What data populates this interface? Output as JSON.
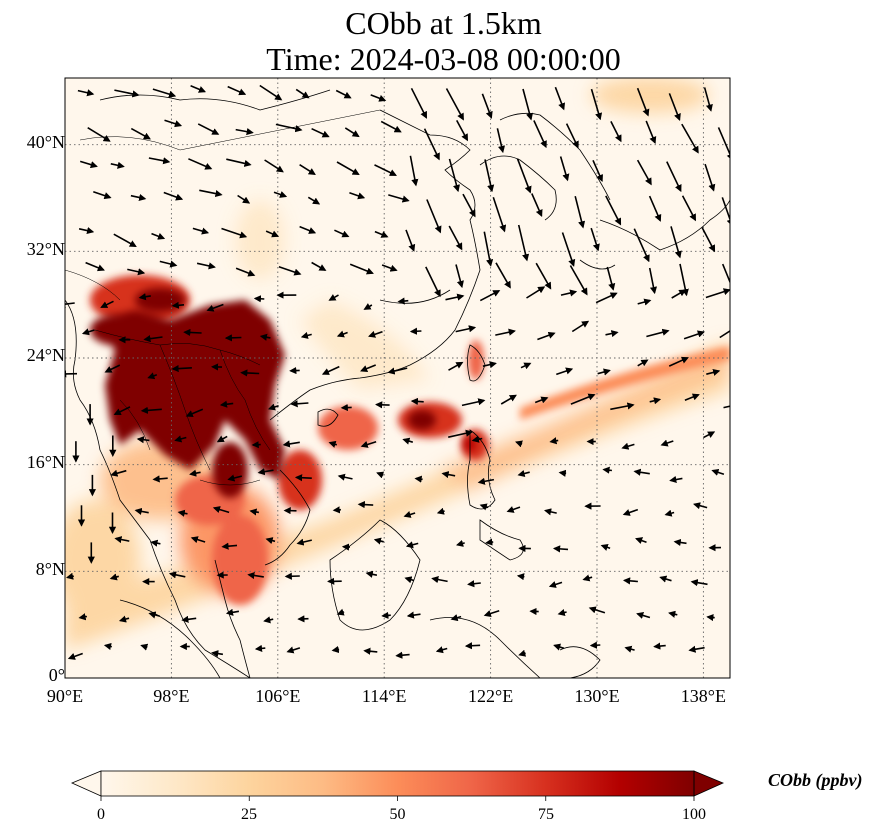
{
  "title": {
    "line1": "CObb at 1.5km",
    "line2": "Time: 2024-03-08 00:00:00"
  },
  "map": {
    "projection": "PlateCarree",
    "lon_range": [
      90,
      140
    ],
    "lat_range": [
      0,
      45
    ],
    "gridlines": "dotted",
    "coastlines": true,
    "country_borders": true,
    "wind_vectors": true
  },
  "axes": {
    "lon_ticks": [
      "90°E",
      "98°E",
      "106°E",
      "114°E",
      "122°E",
      "130°E",
      "138°E"
    ],
    "lon_values": [
      90,
      98,
      106,
      114,
      122,
      130,
      138
    ],
    "lat_ticks": [
      "0°",
      "8°N",
      "16°N",
      "24°N",
      "32°N",
      "40°N"
    ],
    "lat_values": [
      0,
      8,
      16,
      24,
      32,
      40
    ]
  },
  "colorbar": {
    "label": "CObb (ppbv)",
    "min": 0,
    "max": 100,
    "extend": "both",
    "colormap": "OrRd",
    "ticks": [
      "0",
      "25",
      "50",
      "75",
      "100"
    ],
    "tick_values": [
      0,
      25,
      50,
      75,
      100
    ],
    "colors": [
      "#fff7ec",
      "#fee8c8",
      "#fdd49e",
      "#fdbb84",
      "#fc8d59",
      "#ef6548",
      "#d7301f",
      "#b30000",
      "#7f0000"
    ]
  }
}
